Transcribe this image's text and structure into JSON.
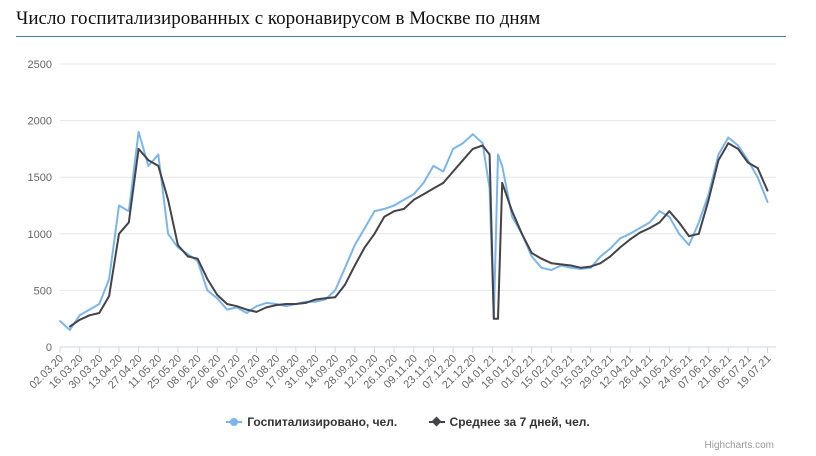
{
  "title": "Число госпитализированных с коронавирусом в Москве по дням",
  "credit": "Highcharts.com",
  "colors": {
    "daily": "#7cb5ec",
    "avg": "#434348",
    "grid": "#e6e6e6",
    "axis": "#ccd6eb",
    "text": "#666666"
  },
  "legend": [
    {
      "label": "Госпитализировано, чел.",
      "symbol": "circle-icon"
    },
    {
      "label": "Среднее за 7 дней, чел.",
      "symbol": "diamond-icon"
    }
  ],
  "chart_data": {
    "type": "line",
    "title": "Число госпитализированных с коронавирусом в Москве по дням",
    "ylim": [
      0,
      2500
    ],
    "yticks": [
      0,
      500,
      1000,
      1500,
      2000,
      2500
    ],
    "grid": true,
    "legend_position": "bottom",
    "xticks": [
      "02.03.20",
      "16.03.20",
      "30.03.20",
      "13.04.20",
      "27.04.20",
      "11.05.20",
      "25.05.20",
      "08.06.20",
      "22.06.20",
      "06.07.20",
      "20.07.20",
      "03.08.20",
      "17.08.20",
      "31.08.20",
      "14.09.20",
      "28.09.20",
      "12.10.20",
      "26.10.20",
      "09.11.20",
      "23.11.20",
      "07.12.20",
      "21.12.20",
      "04.01.21",
      "18.01.21",
      "01.02.21",
      "15.02.21",
      "01.03.21",
      "15.03.21",
      "29.03.21",
      "12.04.21",
      "26.04.21",
      "10.05.21",
      "24.05.21",
      "07.06.21",
      "21.06.21",
      "05.07.21",
      "19.07.21"
    ],
    "series": [
      {
        "name": "Госпитализировано, чел.",
        "x": [
          "02.03.20",
          "09.03.20",
          "16.03.20",
          "23.03.20",
          "30.03.20",
          "06.04.20",
          "13.04.20",
          "20.04.20",
          "27.04.20",
          "04.05.20",
          "11.05.20",
          "18.05.20",
          "25.05.20",
          "01.06.20",
          "08.06.20",
          "15.06.20",
          "22.06.20",
          "29.06.20",
          "06.07.20",
          "13.07.20",
          "20.07.20",
          "27.07.20",
          "03.08.20",
          "10.08.20",
          "17.08.20",
          "24.08.20",
          "31.08.20",
          "07.09.20",
          "14.09.20",
          "21.09.20",
          "28.09.20",
          "05.10.20",
          "12.10.20",
          "19.10.20",
          "26.10.20",
          "02.11.20",
          "09.11.20",
          "16.11.20",
          "23.11.20",
          "30.11.20",
          "07.12.20",
          "14.12.20",
          "21.12.20",
          "28.12.20",
          "02.01.21",
          "05.01.21",
          "08.01.21",
          "11.01.21",
          "18.01.21",
          "25.01.21",
          "01.02.21",
          "08.02.21",
          "15.02.21",
          "22.02.21",
          "01.03.21",
          "08.03.21",
          "15.03.21",
          "22.03.21",
          "29.03.21",
          "05.04.21",
          "12.04.21",
          "19.04.21",
          "26.04.21",
          "03.05.21",
          "10.05.21",
          "17.05.21",
          "24.05.21",
          "31.05.21",
          "07.06.21",
          "14.06.21",
          "21.06.21",
          "28.06.21",
          "05.07.21",
          "12.07.21",
          "19.07.21"
        ],
        "values": [
          230,
          150,
          280,
          330,
          380,
          600,
          1250,
          1200,
          1900,
          1600,
          1700,
          1000,
          880,
          820,
          760,
          500,
          430,
          330,
          350,
          300,
          360,
          390,
          380,
          360,
          380,
          400,
          400,
          420,
          500,
          700,
          900,
          1050,
          1200,
          1220,
          1250,
          1300,
          1350,
          1450,
          1600,
          1550,
          1750,
          1800,
          1880,
          1800,
          1400,
          250,
          1700,
          1600,
          1150,
          1000,
          800,
          700,
          680,
          720,
          700,
          690,
          700,
          800,
          870,
          960,
          1000,
          1050,
          1100,
          1200,
          1150,
          1000,
          900,
          1100,
          1350,
          1700,
          1850,
          1780,
          1650,
          1500,
          1280
        ]
      },
      {
        "name": "Среднее за 7 дней, чел.",
        "x": [
          "09.03.20",
          "16.03.20",
          "23.03.20",
          "30.03.20",
          "06.04.20",
          "13.04.20",
          "20.04.20",
          "27.04.20",
          "04.05.20",
          "11.05.20",
          "18.05.20",
          "25.05.20",
          "01.06.20",
          "08.06.20",
          "15.06.20",
          "22.06.20",
          "29.06.20",
          "06.07.20",
          "13.07.20",
          "20.07.20",
          "27.07.20",
          "03.08.20",
          "10.08.20",
          "17.08.20",
          "24.08.20",
          "31.08.20",
          "07.09.20",
          "14.09.20",
          "21.09.20",
          "28.09.20",
          "05.10.20",
          "12.10.20",
          "19.10.20",
          "26.10.20",
          "02.11.20",
          "09.11.20",
          "16.11.20",
          "23.11.20",
          "30.11.20",
          "07.12.20",
          "14.12.20",
          "21.12.20",
          "28.12.20",
          "02.01.21",
          "05.01.21",
          "08.01.21",
          "11.01.21",
          "18.01.21",
          "25.01.21",
          "01.02.21",
          "08.02.21",
          "15.02.21",
          "22.02.21",
          "01.03.21",
          "08.03.21",
          "15.03.21",
          "22.03.21",
          "29.03.21",
          "05.04.21",
          "12.04.21",
          "19.04.21",
          "26.04.21",
          "03.05.21",
          "10.05.21",
          "17.05.21",
          "24.05.21",
          "31.05.21",
          "07.06.21",
          "14.06.21",
          "21.06.21",
          "28.06.21",
          "05.07.21",
          "12.07.21",
          "19.07.21"
        ],
        "values": [
          180,
          240,
          280,
          300,
          450,
          1000,
          1100,
          1750,
          1650,
          1600,
          1300,
          900,
          800,
          780,
          600,
          460,
          380,
          360,
          330,
          310,
          350,
          370,
          380,
          380,
          390,
          420,
          430,
          440,
          550,
          720,
          880,
          1000,
          1150,
          1200,
          1220,
          1300,
          1350,
          1400,
          1450,
          1550,
          1650,
          1750,
          1780,
          1700,
          250,
          250,
          1450,
          1200,
          1000,
          830,
          780,
          740,
          730,
          720,
          700,
          710,
          740,
          800,
          880,
          950,
          1010,
          1050,
          1100,
          1200,
          1100,
          980,
          1000,
          1300,
          1650,
          1800,
          1750,
          1630,
          1580,
          1380
        ]
      }
    ]
  }
}
